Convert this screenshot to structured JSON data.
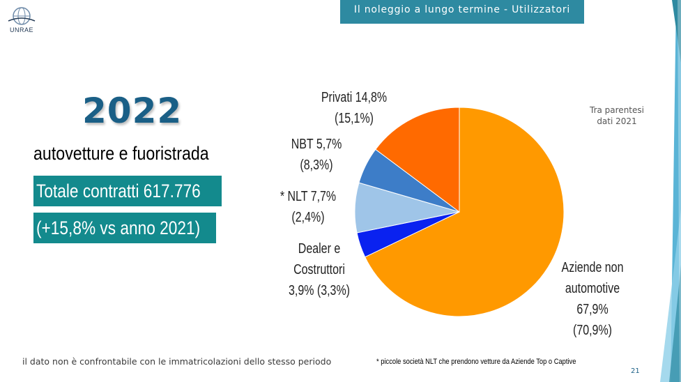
{
  "header": {
    "title": "Il noleggio a lungo termine - Utilizzatori"
  },
  "logo": {
    "text": "UNRAE"
  },
  "left": {
    "year": "2022",
    "subtitle": "autovetture e fuoristrada",
    "total": "Totale contratti 617.776",
    "growth": "(+15,8% vs anno 2021)"
  },
  "note": {
    "line1": "Tra parentesi",
    "line2": "dati 2021"
  },
  "footer": {
    "left": "il dato non è confrontabile con le immatricolazioni dello stesso periodo",
    "right": "* piccole società NLT che prendono vetture da Aziende Top o Captive",
    "page": "21"
  },
  "colors": {
    "header_bg": "#2e8aa1",
    "teal_box": "#138a8d",
    "year": "#1a5f86"
  },
  "chart_data": {
    "type": "pie",
    "start_angle_deg": 0,
    "direction": "clockwise",
    "slices": [
      {
        "name": "Aziende non automotive",
        "value": 67.9,
        "prev": 70.9,
        "color": "#ff9900",
        "label_lines": [
          "Aziende non",
          "automotive",
          "67,9%",
          "(70,9%)"
        ]
      },
      {
        "name": "Dealer e Costruttori",
        "value": 3.9,
        "prev": 3.3,
        "color": "#0a22f0",
        "label_lines": [
          "Dealer e",
          "Costruttori",
          "3,9% (3,3%)"
        ]
      },
      {
        "name": "* NLT",
        "value": 7.7,
        "prev": 2.4,
        "color": "#9fc5e8",
        "label_lines": [
          "* NLT 7,7%",
          "(2,4%)"
        ]
      },
      {
        "name": "NBT",
        "value": 5.7,
        "prev": 8.3,
        "color": "#3d7dc8",
        "label_lines": [
          "NBT 5,7%",
          "(8,3%)"
        ]
      },
      {
        "name": "Privati",
        "value": 14.8,
        "prev": 15.1,
        "color": "#ff6a00",
        "label_lines": [
          "Privati 14,8%",
          "(15,1%)"
        ]
      }
    ]
  }
}
